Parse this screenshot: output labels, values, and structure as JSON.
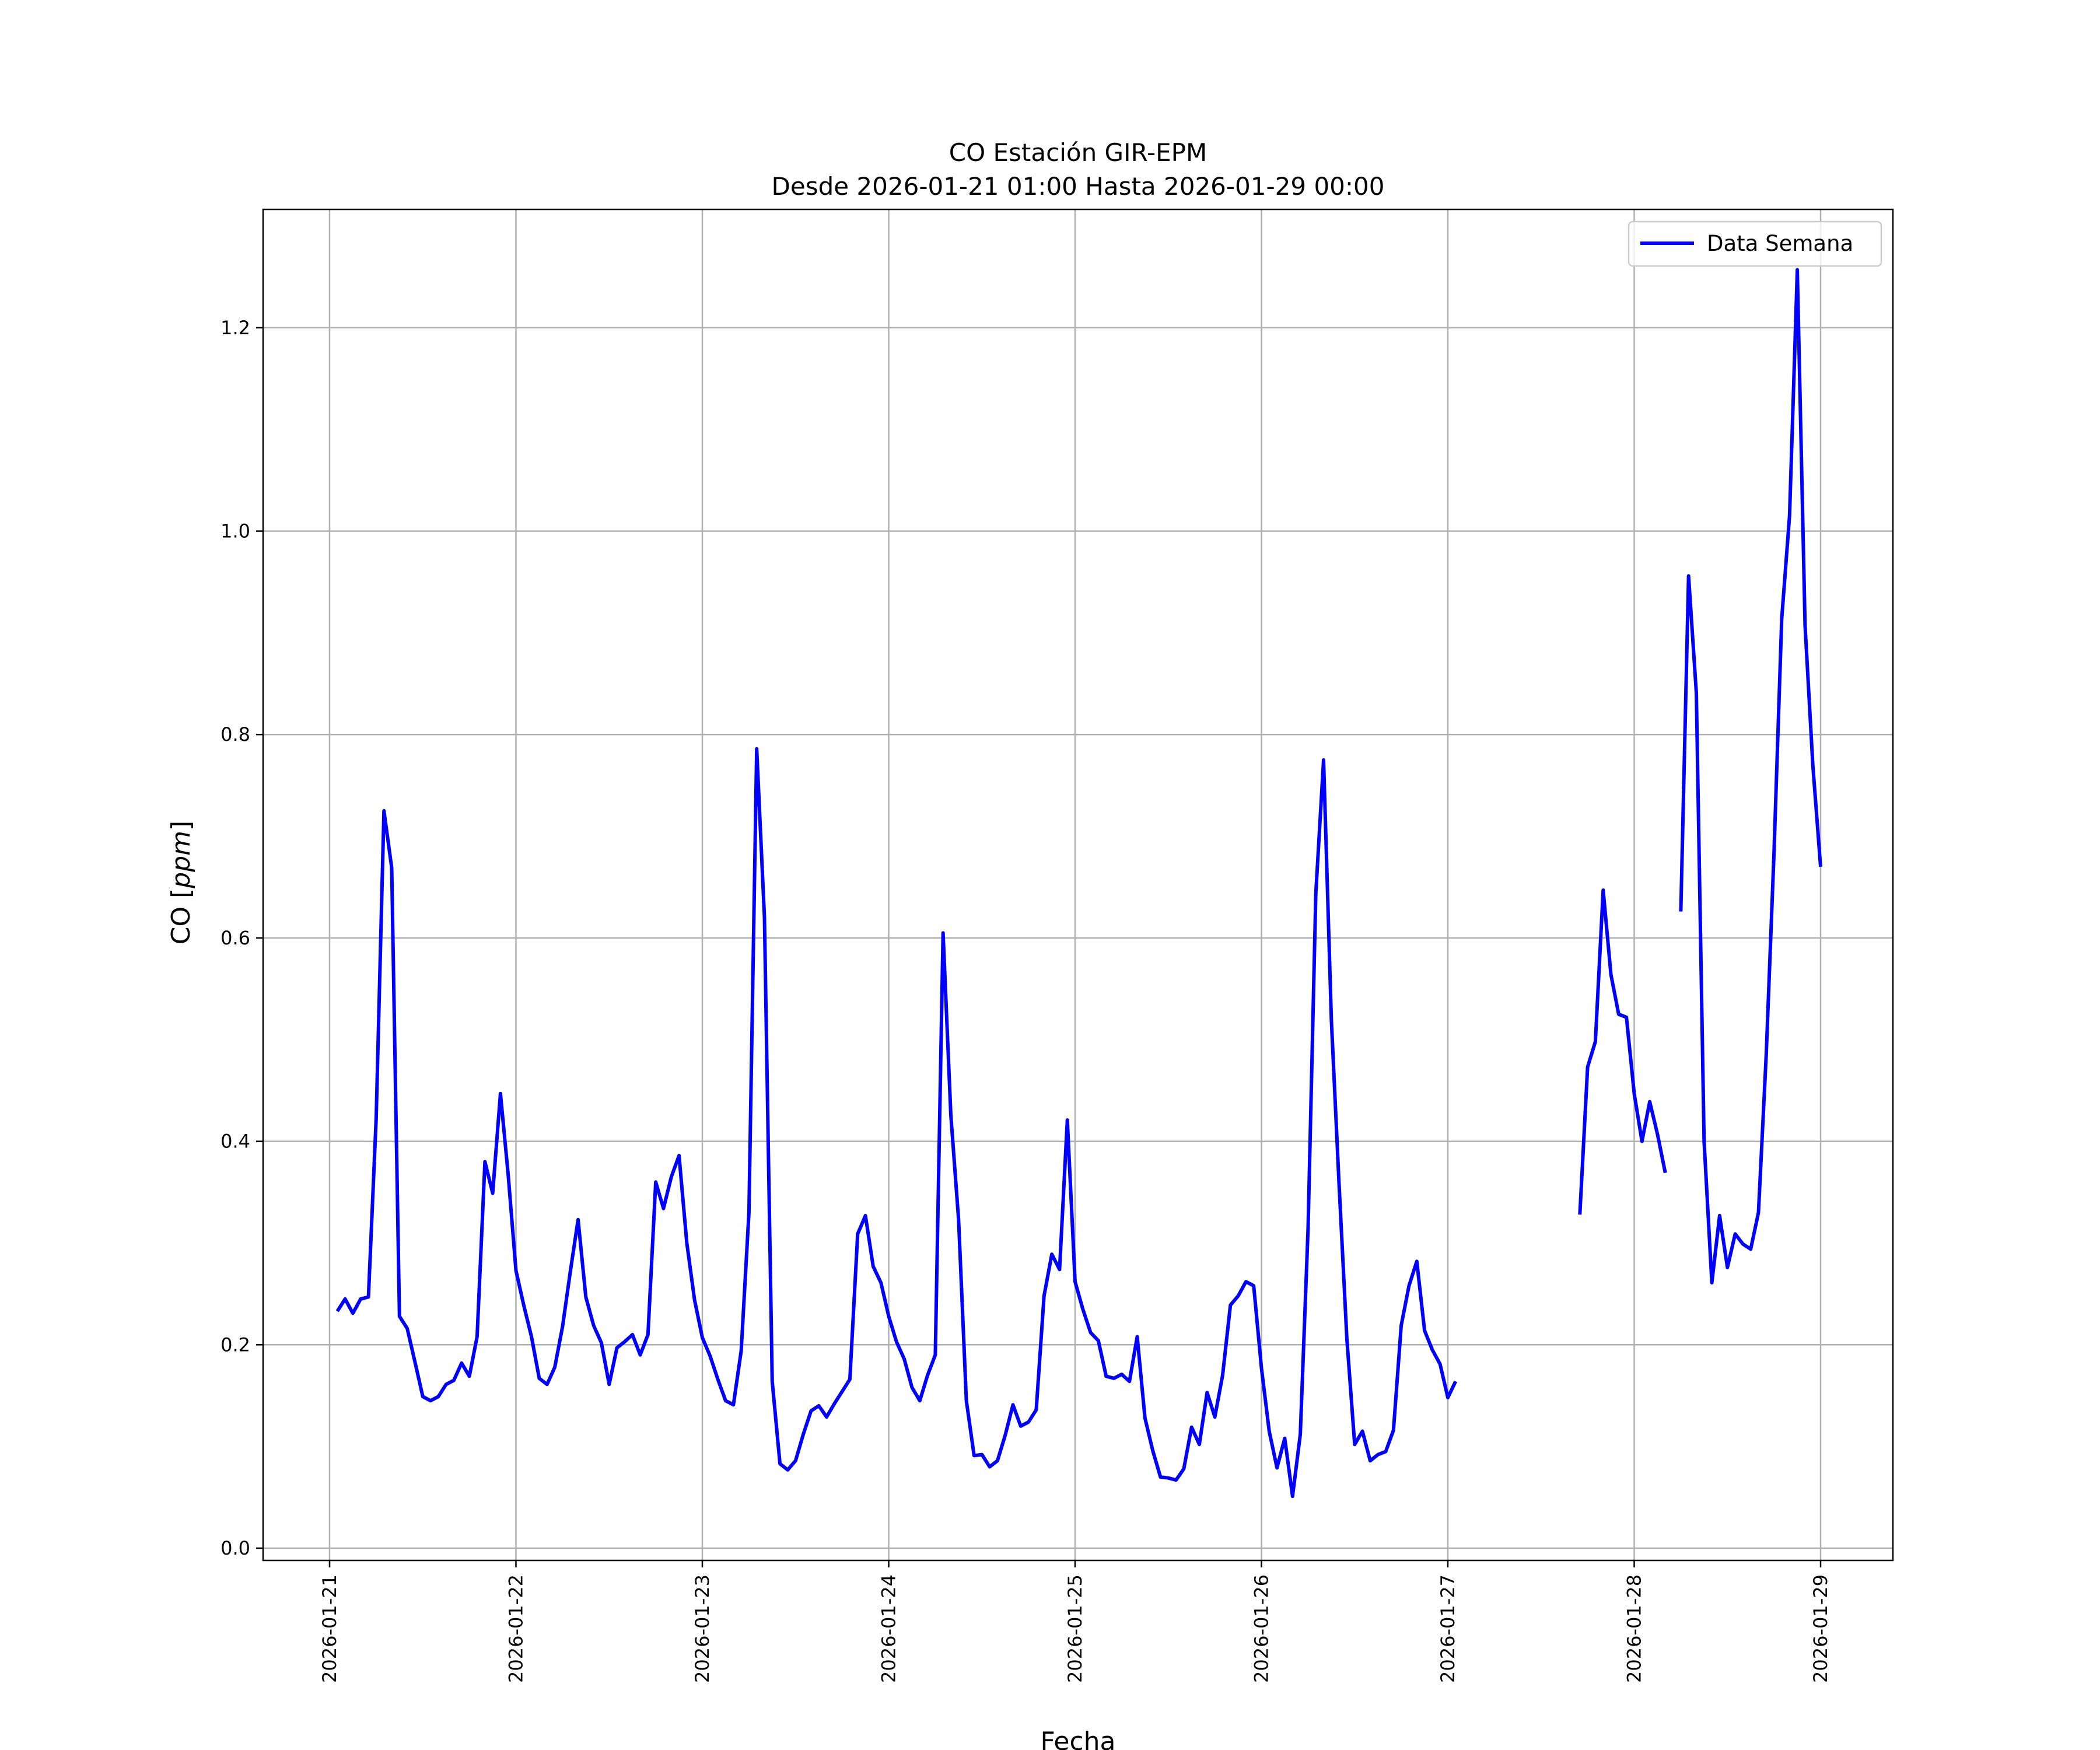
{
  "chart_data": {
    "type": "line",
    "title": "CO Estación GIR-EPM",
    "subtitle": "Desde 2026-01-21 01:00 Hasta 2026-01-29 00:00",
    "xlabel": "Fecha",
    "ylabel_prefix": "CO [",
    "ylabel_unit": "ppm",
    "ylabel_suffix": "]",
    "ylim": [
      -0.01,
      1.32
    ],
    "xlim": [
      "2026-01-20 08:00",
      "2026-01-29 13:00"
    ],
    "grid": true,
    "legend_position": "top-right",
    "x_tick_labels": [
      "2026-01-21",
      "2026-01-22",
      "2026-01-23",
      "2026-01-24",
      "2026-01-25",
      "2026-01-26",
      "2026-01-27",
      "2026-01-28",
      "2026-01-29"
    ],
    "y_ticks": [
      0.0,
      0.2,
      0.4,
      0.6,
      0.8,
      1.0,
      1.2
    ],
    "y_tick_labels": [
      "0.0",
      "0.2",
      "0.4",
      "0.6",
      "0.8",
      "1.0",
      "1.2"
    ],
    "series": [
      {
        "name": "Data Semana",
        "color": "#0000ff",
        "interval_hours": 1,
        "segments": [
          {
            "start": "2026-01-21 01:00",
            "start_hour": 1,
            "values": [
              0.233,
              0.245,
              0.231,
              0.245,
              0.247,
              0.423,
              0.725,
              0.669,
              0.228,
              0.216,
              0.183,
              0.149,
              0.145,
              0.149,
              0.161,
              0.165,
              0.182,
              0.169,
              0.208,
              0.38,
              0.349,
              0.447,
              0.367,
              0.273,
              0.239,
              0.208,
              0.167,
              0.161,
              0.178,
              0.218,
              0.272,
              0.323,
              0.247,
              0.219,
              0.202,
              0.161,
              0.197,
              0.203,
              0.21,
              0.19,
              0.21,
              0.36,
              0.334,
              0.365,
              0.386,
              0.3,
              0.244,
              0.207,
              0.189,
              0.166,
              0.145,
              0.141,
              0.194,
              0.33,
              0.786,
              0.62,
              0.164,
              0.083,
              0.077,
              0.086,
              0.112,
              0.135,
              0.14,
              0.129,
              0.142,
              0.154,
              0.166,
              0.309,
              0.327,
              0.277,
              0.261,
              0.228,
              0.203,
              0.186,
              0.158,
              0.145,
              0.17,
              0.19,
              0.605,
              0.426,
              0.323,
              0.145,
              0.091,
              0.092,
              0.08,
              0.086,
              0.111,
              0.141,
              0.12,
              0.124,
              0.136,
              0.248,
              0.289,
              0.274,
              0.421,
              0.262,
              0.235,
              0.212,
              0.204,
              0.169,
              0.167,
              0.171,
              0.164,
              0.208,
              0.128,
              0.096,
              0.07,
              0.069,
              0.067,
              0.078,
              0.119,
              0.102,
              0.153,
              0.129,
              0.17,
              0.239,
              0.248,
              0.262,
              0.258,
              0.177,
              0.115,
              0.079,
              0.108,
              0.051,
              0.112,
              0.314,
              0.644,
              0.775,
              0.52,
              0.357,
              0.206,
              0.102,
              0.115,
              0.086,
              0.092,
              0.095,
              0.116,
              0.219,
              0.258,
              0.282,
              0.214,
              0.195,
              0.181,
              0.148,
              0.164
            ]
          },
          {
            "start": "2026-01-27 17:00",
            "start_hour": 161,
            "values": [
              0.328,
              0.473,
              0.498,
              0.647,
              0.564,
              0.525,
              0.522,
              0.447,
              0.4,
              0.439,
              0.407,
              0.369
            ]
          },
          {
            "start": "2026-01-28 06:00",
            "start_hour": 174,
            "values": [
              0.626,
              0.956,
              0.841,
              0.4,
              0.261,
              0.327,
              0.276,
              0.309,
              0.299,
              0.294,
              0.33,
              0.485,
              0.683,
              0.914,
              1.015,
              1.257,
              0.907,
              0.77,
              0.67
            ]
          }
        ]
      }
    ]
  }
}
